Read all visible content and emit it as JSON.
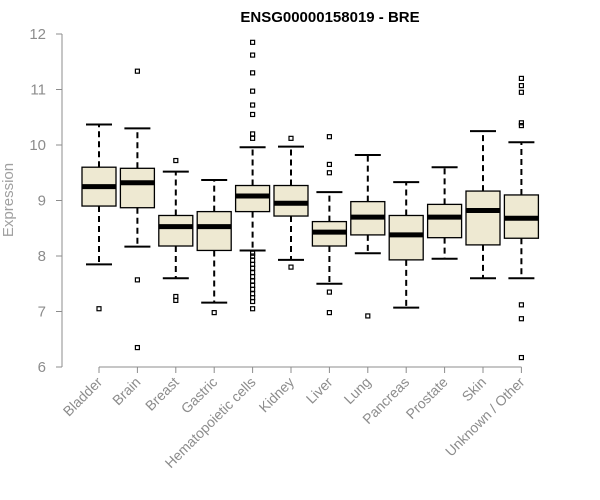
{
  "chart_data": {
    "type": "boxplot",
    "title": "ENSG00000158019 - BRE",
    "xlabel": "",
    "ylabel": "Expression",
    "ylim": [
      6,
      12
    ],
    "yticks": [
      6,
      7,
      8,
      9,
      10,
      11,
      12
    ],
    "box_color": "#eee9d2",
    "categories": [
      "Bladder",
      "Brain",
      "Breast",
      "Gastric",
      "Hematopoietic cells",
      "Kidney",
      "Liver",
      "Lung",
      "Pancreas",
      "Prostate",
      "Skin",
      "Unknown / Other"
    ],
    "series": [
      {
        "name": "Bladder",
        "whisker_low": 7.85,
        "q1": 8.9,
        "median": 9.25,
        "q3": 9.6,
        "whisker_high": 10.37,
        "outliers": [
          7.05
        ]
      },
      {
        "name": "Brain",
        "whisker_low": 8.17,
        "q1": 8.87,
        "median": 9.32,
        "q3": 9.58,
        "whisker_high": 10.3,
        "outliers": [
          11.33,
          7.57,
          6.35
        ]
      },
      {
        "name": "Breast",
        "whisker_low": 7.6,
        "q1": 8.18,
        "median": 8.53,
        "q3": 8.73,
        "whisker_high": 9.52,
        "outliers": [
          9.72,
          7.27,
          7.2
        ]
      },
      {
        "name": "Gastric",
        "whisker_low": 7.16,
        "q1": 8.1,
        "median": 8.53,
        "q3": 8.8,
        "whisker_high": 9.37,
        "outliers": [
          6.98
        ]
      },
      {
        "name": "Hematopoietic cells",
        "whisker_low": 8.1,
        "q1": 8.8,
        "median": 9.08,
        "q3": 9.27,
        "whisker_high": 9.96,
        "outliers": [
          11.85,
          11.62,
          11.3,
          10.97,
          10.72,
          10.55,
          10.2,
          10.12,
          7.05,
          7.18,
          7.25,
          7.32,
          7.4,
          7.47,
          7.55,
          7.63,
          7.7,
          7.78,
          7.85,
          7.92,
          8.0,
          8.05
        ]
      },
      {
        "name": "Kidney",
        "whisker_low": 7.93,
        "q1": 8.72,
        "median": 8.95,
        "q3": 9.27,
        "whisker_high": 9.97,
        "outliers": [
          10.12,
          7.8
        ]
      },
      {
        "name": "Liver",
        "whisker_low": 7.5,
        "q1": 8.18,
        "median": 8.43,
        "q3": 8.62,
        "whisker_high": 9.15,
        "outliers": [
          10.15,
          9.65,
          9.5,
          7.35,
          6.98
        ]
      },
      {
        "name": "Lung",
        "whisker_low": 8.05,
        "q1": 8.38,
        "median": 8.7,
        "q3": 8.98,
        "whisker_high": 9.82,
        "outliers": [
          6.92
        ]
      },
      {
        "name": "Pancreas",
        "whisker_low": 7.07,
        "q1": 7.93,
        "median": 8.38,
        "q3": 8.73,
        "whisker_high": 9.33,
        "outliers": []
      },
      {
        "name": "Prostate",
        "whisker_low": 7.95,
        "q1": 8.33,
        "median": 8.7,
        "q3": 8.93,
        "whisker_high": 9.6,
        "outliers": []
      },
      {
        "name": "Skin",
        "whisker_low": 7.6,
        "q1": 8.2,
        "median": 8.82,
        "q3": 9.17,
        "whisker_high": 10.25,
        "outliers": []
      },
      {
        "name": "Unknown / Other",
        "whisker_low": 7.6,
        "q1": 8.32,
        "median": 8.68,
        "q3": 9.1,
        "whisker_high": 10.05,
        "outliers": [
          11.2,
          11.07,
          10.95,
          10.4,
          10.35,
          7.12,
          6.87,
          6.17
        ]
      }
    ]
  }
}
